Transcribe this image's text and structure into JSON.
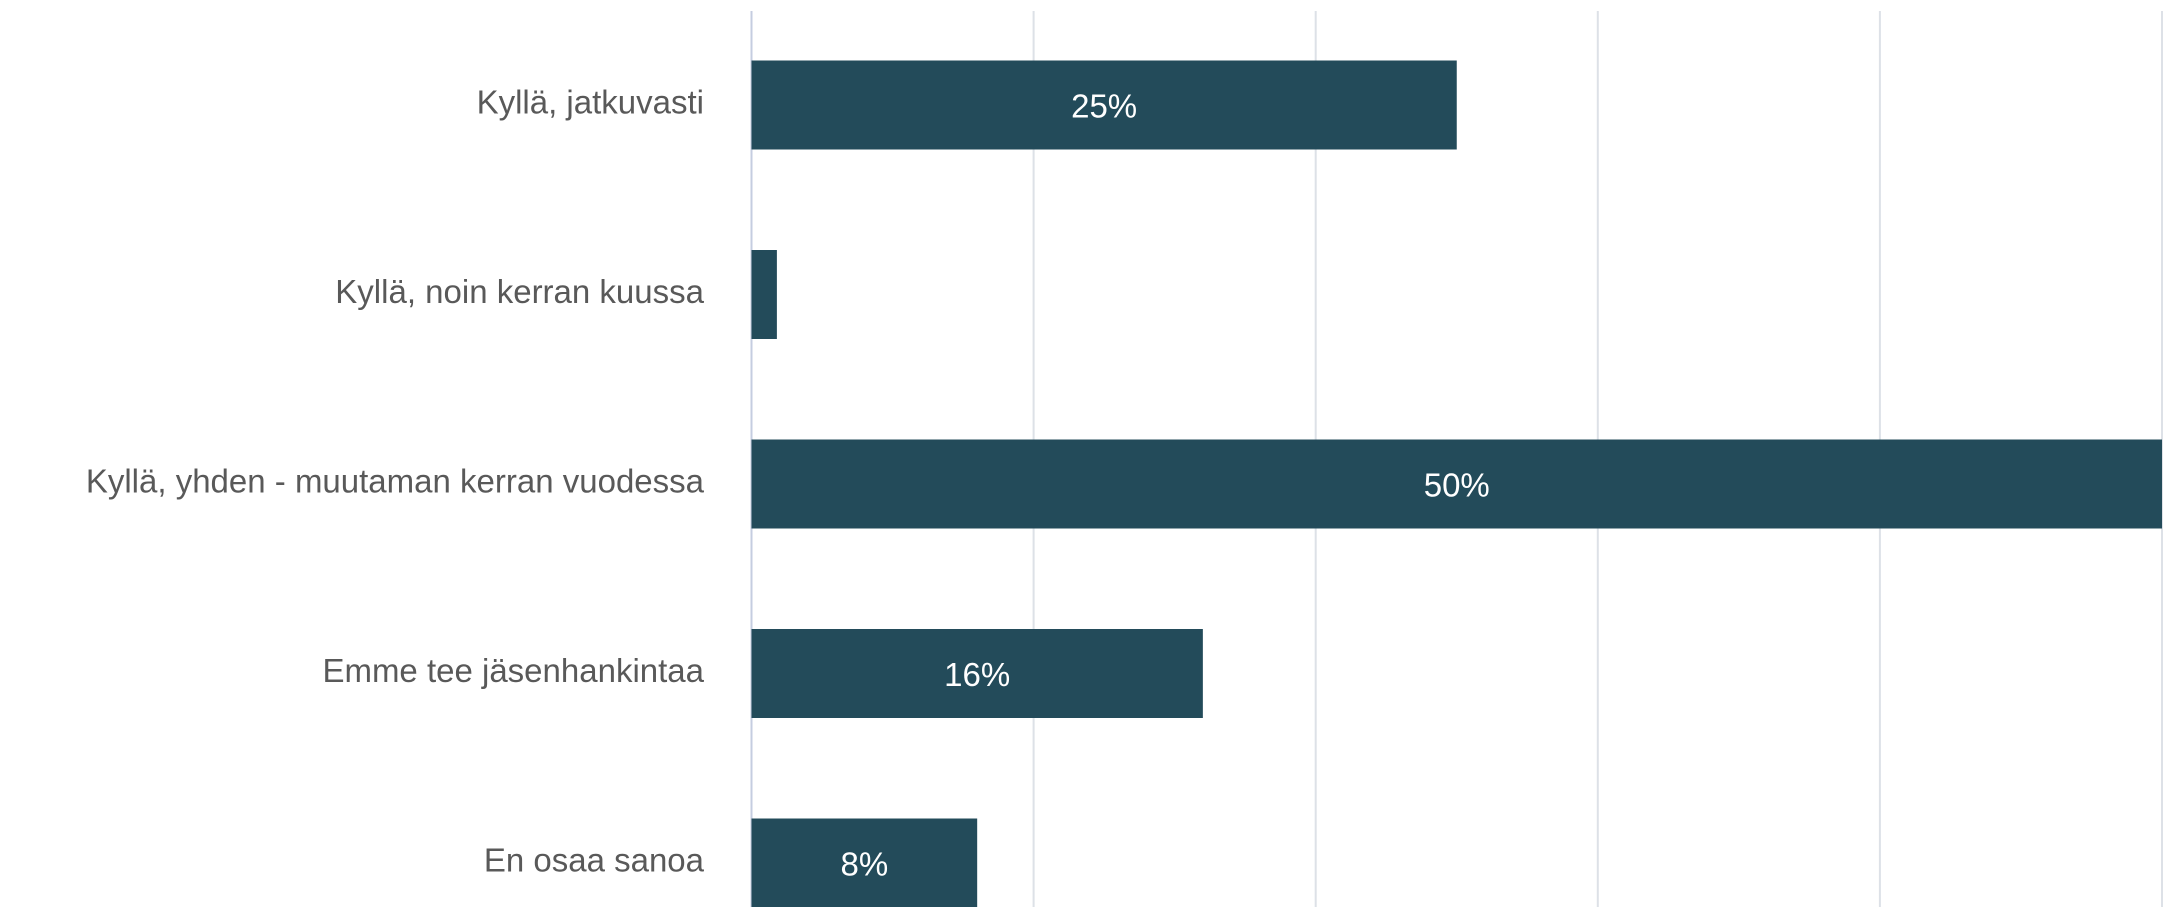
{
  "chart_data": {
    "type": "hbar",
    "categories": [
      "Kyllä, jatkuvasti",
      "Kyllä, noin kerran kuussa",
      "Kyllä, yhden - muutaman kerran vuodessa",
      "Emme tee jäsenhankintaa",
      "En osaa sanoa"
    ],
    "values": [
      25,
      0.9,
      50,
      16,
      8
    ],
    "value_labels": [
      "25%",
      null,
      "50%",
      "16%",
      "8%"
    ],
    "color": "#234b5a",
    "xlim": [
      0,
      50
    ],
    "xticks": [
      0,
      10,
      20,
      30,
      40,
      50
    ],
    "grid": true
  }
}
